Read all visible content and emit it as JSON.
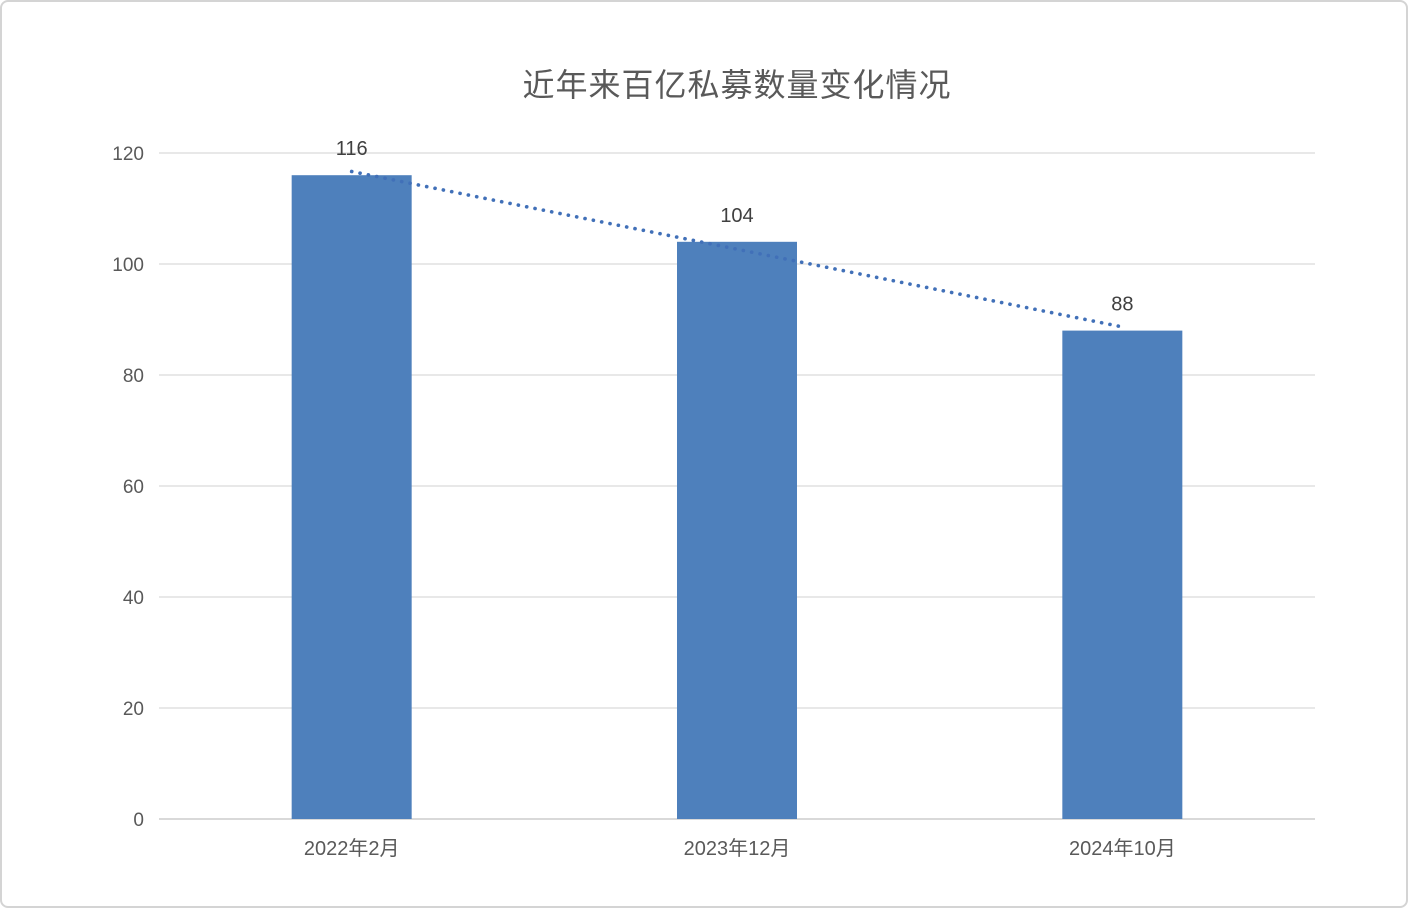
{
  "chart_data": {
    "type": "bar",
    "title": "近年来百亿私募数量变化情况",
    "categories": [
      "2022年2月",
      "2023年12月",
      "2024年10月"
    ],
    "values": [
      116,
      104,
      88
    ],
    "yticks": [
      0,
      20,
      40,
      60,
      80,
      100,
      120
    ],
    "ylim": [
      0,
      120
    ],
    "xlabel": "",
    "ylabel": "",
    "grid": "horizontal-only",
    "legend": "none",
    "trendline": {
      "type": "linear",
      "style": "dotted",
      "series": "values"
    }
  },
  "colors": {
    "background": "#ffffff",
    "frame_border": "#d4d4d4",
    "bar": "#4e80bc",
    "trendline": "#4170b8",
    "gridline": "#d9d9d9",
    "axis_text": "#595959",
    "value_label": "#404040",
    "title_text": "#595959"
  }
}
